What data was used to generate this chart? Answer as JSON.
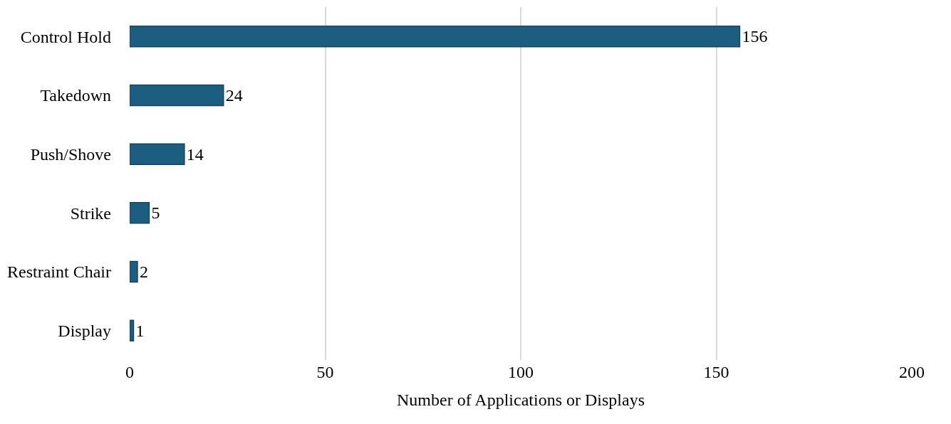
{
  "chart_data": {
    "type": "bar",
    "orientation": "horizontal",
    "xlabel": "Number of Applications or Displays",
    "categories": [
      "Control Hold",
      "Takedown",
      "Push/Shove",
      "Strike",
      "Restraint Chair",
      "Display"
    ],
    "values": [
      156,
      24,
      14,
      5,
      2,
      1
    ],
    "color": "#1b5e80",
    "xlim": [
      0,
      200
    ],
    "xticks": [
      0,
      50,
      100,
      150,
      200
    ],
    "grid": "x",
    "data_labels": true,
    "legend": false
  }
}
